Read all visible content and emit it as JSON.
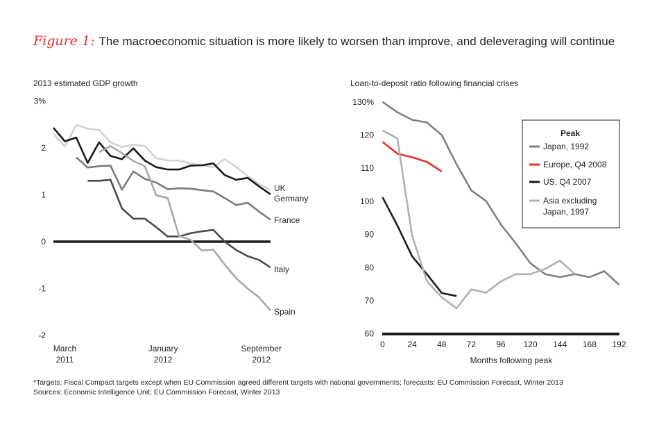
{
  "title_prefix": "Figure 1:",
  "title": "The macroeconomic situation is more likely to worsen than improve, and deleveraging will continue",
  "footnotes": [
    "*Targets: Fiscal Compact targets except when EU Commission agreed different targets with national governments; forecasts: EU Commission Forecast, Winter 2013",
    "Sources: Economic Intelligence Unit; EU Commission Forecast, Winter 2013"
  ],
  "chart_data": [
    {
      "type": "line",
      "title": "2013 estimated GDP growth",
      "ylim": [
        -2,
        3
      ],
      "yticks": [
        "3%",
        "2",
        "1",
        "0",
        "-1",
        "-2"
      ],
      "ytick_values": [
        3,
        2,
        1,
        0,
        -1,
        -2
      ],
      "xticks": [
        {
          "label": [
            "March",
            "2011"
          ],
          "index": 1
        },
        {
          "label": [
            "January",
            "2012"
          ],
          "index": 9.6
        },
        {
          "label": [
            "September",
            "2012"
          ],
          "index": 18.2
        }
      ],
      "reference_line": 0,
      "series": [
        {
          "name": "UK",
          "color": "#d2d2d2",
          "values": [
            2.3,
            2.03,
            2.49,
            2.41,
            2.38,
            2.12,
            2.02,
            2.07,
            2.04,
            1.78,
            1.73,
            1.73,
            1.67,
            1.63,
            1.59,
            1.76,
            1.59,
            1.4,
            1.23,
            1.1
          ]
        },
        {
          "name": "Germany",
          "color": "#1a1a1a",
          "values": [
            2.43,
            2.14,
            2.22,
            1.68,
            2.12,
            1.83,
            1.76,
            1.99,
            1.73,
            1.59,
            1.54,
            1.54,
            1.62,
            1.63,
            1.67,
            1.42,
            1.32,
            1.36,
            1.18,
            1.01
          ]
        },
        {
          "name": "France",
          "color": "#7a7a7a",
          "values": [
            null,
            null,
            1.8,
            1.58,
            1.61,
            1.62,
            1.11,
            1.5,
            1.34,
            1.26,
            1.12,
            1.14,
            1.13,
            1.1,
            1.07,
            0.93,
            0.78,
            0.83,
            0.64,
            0.47
          ]
        },
        {
          "name": "Italy",
          "color": "#4a4a4a",
          "values": [
            null,
            null,
            null,
            1.3,
            1.3,
            1.32,
            0.71,
            0.49,
            0.49,
            0.31,
            0.11,
            0.11,
            0.18,
            0.22,
            0.25,
            0.0,
            -0.18,
            -0.31,
            -0.39,
            -0.55
          ]
        },
        {
          "name": "Spain",
          "color": "#a8a8a8",
          "values": [
            null,
            null,
            null,
            null,
            1.91,
            2.04,
            1.89,
            1.72,
            1.61,
            0.99,
            0.93,
            0.12,
            0.04,
            -0.19,
            -0.17,
            -0.49,
            -0.78,
            -1.0,
            -1.19,
            -1.47
          ]
        }
      ]
    },
    {
      "type": "line",
      "title": "Loan-to-deposit ratio following financial crises",
      "xlabel": "Months following peak",
      "xlim": [
        0,
        192
      ],
      "ylim": [
        60,
        130
      ],
      "xticks": [
        0,
        24,
        48,
        72,
        96,
        120,
        144,
        168,
        192
      ],
      "yticks": [
        "130%",
        "120",
        "110",
        "100",
        "90",
        "80",
        "70",
        "60"
      ],
      "ytick_values": [
        130,
        120,
        110,
        100,
        90,
        80,
        70,
        60
      ],
      "legend": {
        "title": "Peak",
        "placement": "top-right"
      },
      "series": [
        {
          "name": "Japan, 1992",
          "color": "#808080",
          "x": [
            0,
            12,
            24,
            36,
            48,
            60,
            72,
            84,
            96,
            108,
            120,
            132,
            144,
            156,
            168,
            180,
            192
          ],
          "values": [
            130,
            126.9,
            124.6,
            123.8,
            120,
            111.2,
            103.3,
            100.1,
            93,
            87.4,
            81.3,
            78,
            77.1,
            78,
            77.1,
            78.9,
            74.8
          ]
        },
        {
          "name": "Europe, Q4 2008",
          "color": "#e8302a",
          "x": [
            0,
            12,
            24,
            36,
            48
          ],
          "values": [
            117.9,
            114.4,
            113.3,
            111.9,
            109
          ]
        },
        {
          "name": "US, Q4 2007",
          "color": "#1a1a1a",
          "x": [
            0,
            12,
            24,
            36,
            48,
            60
          ],
          "values": [
            101.2,
            92.7,
            83.4,
            78,
            72.3,
            71.4
          ]
        },
        {
          "name": "Asia excluding Japan, 1997",
          "color": "#b0b0b0",
          "x": [
            0,
            12,
            24,
            36,
            48,
            60,
            72,
            84,
            96,
            108,
            120,
            132,
            144,
            156
          ],
          "values": [
            121.4,
            119,
            89.6,
            75.9,
            71,
            67.7,
            73.4,
            72.4,
            75.8,
            78,
            78,
            79.6,
            82.1,
            78
          ]
        }
      ]
    }
  ]
}
